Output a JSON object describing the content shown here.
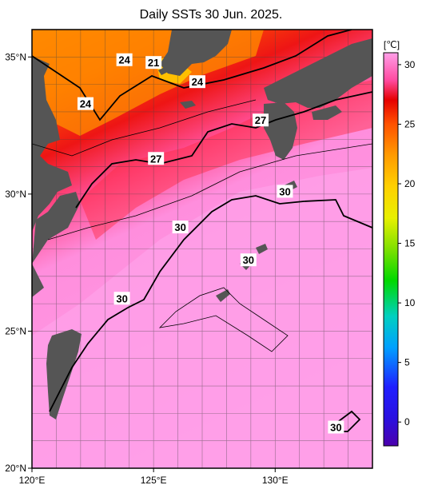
{
  "title": "Daily SSTs 30 Jun. 2025.",
  "map": {
    "lon_ticks": [
      {
        "label": "120°E",
        "lon": 120
      },
      {
        "label": "125°E",
        "lon": 125
      },
      {
        "label": "130°E",
        "lon": 130
      }
    ],
    "lat_ticks": [
      {
        "label": "35°N",
        "lat": 35
      },
      {
        "label": "30°N",
        "lat": 30
      },
      {
        "label": "25°N",
        "lat": 25
      },
      {
        "label": "20°N",
        "lat": 20
      }
    ],
    "lon_range": [
      120,
      134
    ],
    "lat_range": [
      20,
      36
    ],
    "grid_lines": "every 1 degree",
    "land_color": "#555555",
    "contour_labels": [
      {
        "text": "24",
        "lon": 123.8,
        "lat": 34.9
      },
      {
        "text": "21",
        "lon": 125.0,
        "lat": 34.8
      },
      {
        "text": "24",
        "lon": 126.8,
        "lat": 34.1
      },
      {
        "text": "24",
        "lon": 122.2,
        "lat": 33.3
      },
      {
        "text": "27",
        "lon": 129.4,
        "lat": 32.7
      },
      {
        "text": "27",
        "lon": 125.1,
        "lat": 31.3
      },
      {
        "text": "30",
        "lon": 130.4,
        "lat": 30.1
      },
      {
        "text": "30",
        "lon": 126.1,
        "lat": 28.8
      },
      {
        "text": "30",
        "lon": 128.9,
        "lat": 27.6
      },
      {
        "text": "30",
        "lon": 123.7,
        "lat": 26.2
      },
      {
        "text": "30",
        "lon": 132.5,
        "lat": 21.5
      }
    ]
  },
  "colorbar": {
    "unit": "[℃]",
    "min": -2,
    "max": 31,
    "tick_labels": [
      "30",
      "25",
      "20",
      "15",
      "10",
      "5",
      "0"
    ],
    "tick_values": [
      30,
      25,
      20,
      15,
      10,
      5,
      0
    ],
    "colors": [
      "#4b00ad",
      "#1f1fff",
      "#00b4ff",
      "#00d878",
      "#27d400",
      "#c8f000",
      "#ffee00",
      "#ffbe00",
      "#ff8a00",
      "#ff3b00",
      "#e60000",
      "#ff5aa0",
      "#ff9fe8"
    ]
  }
}
